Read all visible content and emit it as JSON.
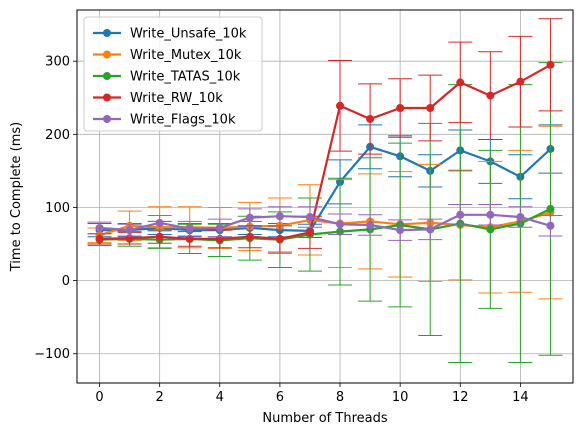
{
  "chart_data": {
    "type": "line",
    "xlabel": "Number of Threads",
    "ylabel": "Time to Complete (ms)",
    "xlim": [
      -0.75,
      15.75
    ],
    "ylim": [
      -140,
      370
    ],
    "x_ticks": [
      0,
      2,
      4,
      6,
      8,
      10,
      12,
      14
    ],
    "y_ticks": [
      -100,
      0,
      100,
      200,
      300
    ],
    "x_tick_labels": [
      "0",
      "2",
      "4",
      "6",
      "8",
      "10",
      "12",
      "14"
    ],
    "y_tick_labels": [
      "−100",
      "0",
      "100",
      "200",
      "300"
    ],
    "grid": true,
    "legend_position": "top-left",
    "x": [
      0,
      1,
      2,
      3,
      4,
      5,
      6,
      7,
      8,
      9,
      10,
      11,
      12,
      13,
      14,
      15
    ],
    "series": [
      {
        "name": "Write_Unsafe_10k",
        "color": "#1f77b4",
        "values": [
          69,
          69,
          72,
          69,
          69,
          72,
          69,
          68,
          135,
          183,
          170,
          150,
          178,
          163,
          142,
          180
        ],
        "errors": [
          9,
          9,
          9,
          9,
          9,
          9,
          9,
          9,
          30,
          30,
          28,
          22,
          28,
          30,
          30,
          33
        ]
      },
      {
        "name": "Write_Mutex_10k",
        "color": "#ff7f0e",
        "values": [
          62,
          75,
          73,
          73,
          72,
          74,
          75,
          83,
          78,
          81,
          77,
          79,
          76,
          73,
          81,
          93
        ],
        "errors": [
          10,
          20,
          28,
          28,
          28,
          33,
          38,
          48,
          60,
          65,
          72,
          80,
          75,
          90,
          97,
          118
        ]
      },
      {
        "name": "Write_TATAS_10k",
        "color": "#2ca02c",
        "values": [
          56,
          57,
          56,
          57,
          55,
          58,
          56,
          63,
          67,
          70,
          76,
          70,
          78,
          70,
          78,
          98
        ],
        "errors": [
          8,
          10,
          12,
          20,
          22,
          30,
          38,
          50,
          73,
          98,
          112,
          145,
          190,
          108,
          190,
          200
        ]
      },
      {
        "name": "Write_RW_10k",
        "color": "#d62728",
        "values": [
          57,
          58,
          60,
          57,
          57,
          60,
          57,
          66,
          239,
          221,
          236,
          236,
          271,
          253,
          272,
          295
        ],
        "errors": [
          7,
          8,
          9,
          10,
          12,
          15,
          18,
          22,
          62,
          48,
          40,
          45,
          55,
          60,
          62,
          63
        ]
      },
      {
        "name": "Write_Flags_10k",
        "color": "#9467bd",
        "values": [
          72,
          69,
          79,
          71,
          72,
          86,
          88,
          87,
          77,
          76,
          69,
          70,
          90,
          90,
          87,
          75
        ],
        "errors": [
          8,
          8,
          10,
          10,
          12,
          12,
          13,
          14,
          14,
          14,
          14,
          14,
          14,
          14,
          14,
          14
        ]
      }
    ]
  }
}
